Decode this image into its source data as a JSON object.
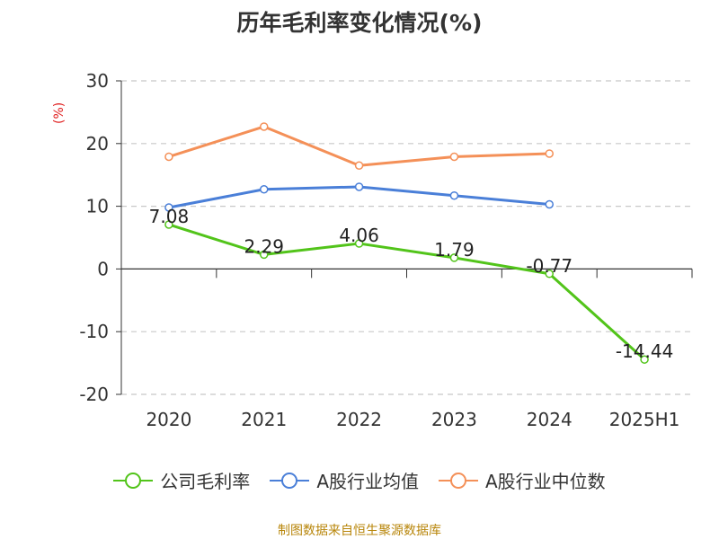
{
  "chart_data": {
    "type": "line",
    "title": "历年毛利率变化情况(%)",
    "y_unit_label": "(%)",
    "categories": [
      "2020",
      "2021",
      "2022",
      "2023",
      "2024",
      "2025H1"
    ],
    "ylim": [
      -20,
      30
    ],
    "yticks": [
      -20,
      -10,
      0,
      10,
      20,
      30
    ],
    "grid": true,
    "legend_position": "bottom",
    "series": [
      {
        "name": "公司毛利率",
        "color": "#52c41a",
        "values": [
          7.08,
          2.29,
          4.06,
          1.79,
          -0.77,
          -14.44
        ],
        "labels": [
          "7.08",
          "2.29",
          "4.06",
          "1.79",
          "-0.77",
          "-14.44"
        ]
      },
      {
        "name": "A股行业均值",
        "color": "#4a7fd8",
        "values": [
          9.8,
          12.7,
          13.1,
          11.7,
          10.3,
          null
        ]
      },
      {
        "name": "A股行业中位数",
        "color": "#f49058",
        "values": [
          17.9,
          22.7,
          16.5,
          17.9,
          18.4,
          null
        ]
      }
    ]
  },
  "source": "制图数据来自恒生聚源数据库"
}
